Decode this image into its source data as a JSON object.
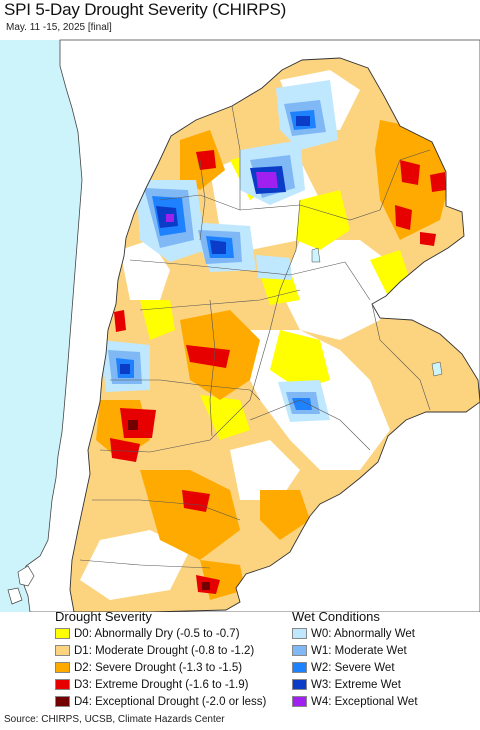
{
  "title": "SPI 5-Day Drought Severity (CHIRPS)",
  "subtitle": "May. 11 -15, 2025 [final]",
  "colors": {
    "ocean": "#cdf3fb",
    "land_neighbor": "#ffffff",
    "D0": "#ffff00",
    "D1": "#fcd37f",
    "D2": "#ffaa00",
    "D3": "#e60000",
    "D4": "#730000",
    "W0": "#bfe8ff",
    "W1": "#7fb8f5",
    "W2": "#1e82ff",
    "W3": "#0a3cc8",
    "W4": "#a020f0"
  },
  "legend": {
    "drought_heading": "Drought Severity",
    "wet_heading": "Wet Conditions",
    "drought_items": [
      {
        "code": "D0",
        "label": "D0: Abnormally Dry (-0.5 to -0.7)"
      },
      {
        "code": "D1",
        "label": "D1: Moderate Drought (-0.8 to -1.2)"
      },
      {
        "code": "D2",
        "label": "D2: Severe Drought (-1.3 to -1.5)"
      },
      {
        "code": "D3",
        "label": "D3: Extreme Drought (-1.6 to -1.9)"
      },
      {
        "code": "D4",
        "label": "D4: Exceptional Drought (-2.0 or less)"
      }
    ],
    "wet_items": [
      {
        "code": "W0",
        "label": "W0: Abnormally Wet"
      },
      {
        "code": "W1",
        "label": "W1: Moderate Wet"
      },
      {
        "code": "W2",
        "label": "W2: Severe Wet"
      },
      {
        "code": "W3",
        "label": "W3: Extreme Wet"
      },
      {
        "code": "W4",
        "label": "W4: Exceptional Wet"
      }
    ]
  },
  "source": "Source: CHIRPS, UCSB, Climate Hazards Center"
}
